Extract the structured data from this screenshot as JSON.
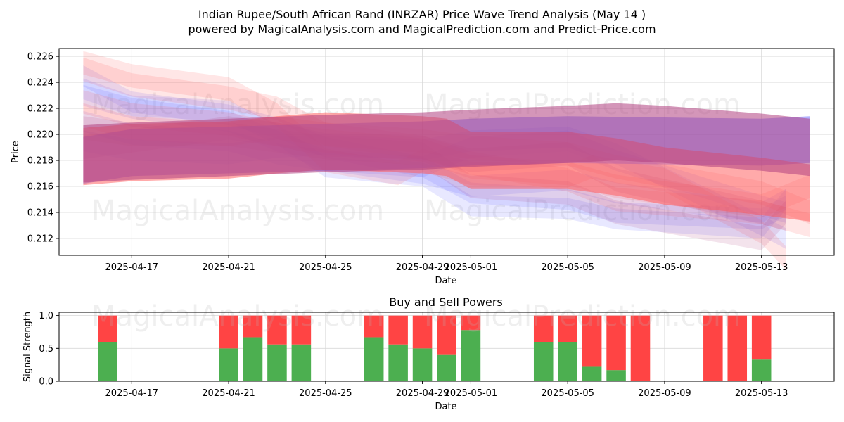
{
  "title_line1": "Indian Rupee/South African Rand (INRZAR) Price Wave Trend Analysis (May 14 )",
  "title_line2": "powered by MagicalAnalysis.com and MagicalPrediction.com and Predict-Price.com",
  "watermarks": [
    "MagicalAnalysis.com",
    "MagicalPrediction.com"
  ],
  "colors": {
    "buy": "#4caf50",
    "sell": "#ff4444",
    "blue_wave": "#6666ff",
    "red_wave": "#ff5555",
    "purple_wave": "#b04080"
  },
  "chart_data": [
    {
      "type": "area",
      "title": "",
      "xlabel": "Date",
      "ylabel": "Price",
      "x_ticks": [
        "2025-04-17",
        "2025-04-21",
        "2025-04-25",
        "2025-04-29",
        "2025-05-01",
        "2025-05-05",
        "2025-05-09",
        "2025-05-13"
      ],
      "y_ticks": [
        0.212,
        0.214,
        0.216,
        0.218,
        0.22,
        0.222,
        0.224,
        0.226
      ],
      "xlim": [
        "2025-04-14",
        "2025-05-16"
      ],
      "ylim": [
        0.2107,
        0.2266
      ],
      "grid": true,
      "series": [
        {
          "color": "blue",
          "opacity": 0.15,
          "width": 0.0008,
          "points": [
            [
              "2025-04-15",
              0.2235
            ],
            [
              "2025-04-17",
              0.2222
            ],
            [
              "2025-04-21",
              0.2218
            ],
            [
              "2025-04-23",
              0.22
            ],
            [
              "2025-04-25",
              0.2175
            ],
            [
              "2025-04-29",
              0.2168
            ],
            [
              "2025-05-01",
              0.2145
            ],
            [
              "2025-05-05",
              0.2143
            ],
            [
              "2025-05-07",
              0.2135
            ],
            [
              "2025-05-13",
              0.2128
            ],
            [
              "2025-05-14",
              0.215
            ]
          ]
        },
        {
          "color": "blue",
          "opacity": 0.15,
          "width": 0.0008,
          "points": [
            [
              "2025-04-15",
              0.2245
            ],
            [
              "2025-04-17",
              0.2225
            ],
            [
              "2025-04-21",
              0.2215
            ],
            [
              "2025-04-23",
              0.2205
            ],
            [
              "2025-04-25",
              0.219
            ],
            [
              "2025-04-29",
              0.2175
            ],
            [
              "2025-05-01",
              0.2155
            ],
            [
              "2025-05-05",
              0.215
            ],
            [
              "2025-05-07",
              0.214
            ],
            [
              "2025-05-13",
              0.2135
            ],
            [
              "2025-05-14",
              0.2145
            ]
          ]
        },
        {
          "color": "blue",
          "opacity": 0.15,
          "width": 0.0008,
          "points": [
            [
              "2025-04-15",
              0.223
            ],
            [
              "2025-04-17",
              0.222
            ],
            [
              "2025-04-21",
              0.221
            ],
            [
              "2025-04-23",
              0.2195
            ],
            [
              "2025-04-25",
              0.218
            ],
            [
              "2025-04-29",
              0.217
            ],
            [
              "2025-05-01",
              0.216
            ],
            [
              "2025-05-05",
              0.2165
            ],
            [
              "2025-05-07",
              0.2155
            ],
            [
              "2025-05-13",
              0.214
            ],
            [
              "2025-05-14",
              0.215
            ]
          ]
        },
        {
          "color": "blue",
          "opacity": 0.15,
          "width": 0.0008,
          "points": [
            [
              "2025-04-15",
              0.221
            ],
            [
              "2025-04-17",
              0.22
            ],
            [
              "2025-04-21",
              0.2195
            ],
            [
              "2025-04-23",
              0.2185
            ],
            [
              "2025-04-25",
              0.218
            ],
            [
              "2025-04-29",
              0.2175
            ],
            [
              "2025-05-01",
              0.219
            ],
            [
              "2025-05-05",
              0.2195
            ],
            [
              "2025-05-07",
              0.218
            ],
            [
              "2025-05-13",
              0.2145
            ],
            [
              "2025-05-14",
              0.214
            ]
          ]
        },
        {
          "color": "blue",
          "opacity": 0.15,
          "width": 0.0008,
          "points": [
            [
              "2025-04-15",
              0.2195
            ],
            [
              "2025-04-17",
              0.2188
            ],
            [
              "2025-04-21",
              0.2185
            ],
            [
              "2025-04-23",
              0.219
            ],
            [
              "2025-04-25",
              0.2192
            ],
            [
              "2025-04-29",
              0.2188
            ],
            [
              "2025-05-01",
              0.2195
            ],
            [
              "2025-05-05",
              0.2198
            ],
            [
              "2025-05-07",
              0.2185
            ],
            [
              "2025-05-13",
              0.213
            ],
            [
              "2025-05-14",
              0.212
            ]
          ]
        },
        {
          "color": "red",
          "opacity": 0.15,
          "width": 0.0009,
          "points": [
            [
              "2025-04-15",
              0.2255
            ],
            [
              "2025-04-17",
              0.2245
            ],
            [
              "2025-04-21",
              0.2235
            ],
            [
              "2025-04-23",
              0.2215
            ],
            [
              "2025-04-25",
              0.218
            ],
            [
              "2025-04-28",
              0.217
            ],
            [
              "2025-04-29",
              0.218
            ],
            [
              "2025-05-01",
              0.217
            ],
            [
              "2025-05-05",
              0.2168
            ],
            [
              "2025-05-06",
              0.2175
            ],
            [
              "2025-05-09",
              0.2165
            ],
            [
              "2025-05-13",
              0.2125
            ],
            [
              "2025-05-14",
              0.2105
            ]
          ]
        },
        {
          "color": "red",
          "opacity": 0.15,
          "width": 0.0009,
          "points": [
            [
              "2025-04-15",
              0.225
            ],
            [
              "2025-04-17",
              0.2238
            ],
            [
              "2025-04-21",
              0.2228
            ],
            [
              "2025-04-23",
              0.222
            ],
            [
              "2025-04-25",
              0.22
            ],
            [
              "2025-04-29",
              0.219
            ],
            [
              "2025-05-01",
              0.2178
            ],
            [
              "2025-05-05",
              0.2165
            ],
            [
              "2025-05-07",
              0.215
            ],
            [
              "2025-05-13",
              0.214
            ],
            [
              "2025-05-15",
              0.213
            ]
          ]
        },
        {
          "color": "red",
          "opacity": 0.15,
          "width": 0.0009,
          "points": [
            [
              "2025-04-15",
              0.2225
            ],
            [
              "2025-04-17",
              0.2215
            ],
            [
              "2025-04-21",
              0.2208
            ],
            [
              "2025-04-23",
              0.22
            ],
            [
              "2025-04-25",
              0.2195
            ],
            [
              "2025-04-29",
              0.2188
            ],
            [
              "2025-05-01",
              0.2175
            ],
            [
              "2025-05-05",
              0.217
            ],
            [
              "2025-05-07",
              0.216
            ],
            [
              "2025-05-13",
              0.2145
            ],
            [
              "2025-05-15",
              0.216
            ]
          ]
        },
        {
          "color": "red",
          "opacity": 0.15,
          "width": 0.0009,
          "points": [
            [
              "2025-04-15",
              0.2215
            ],
            [
              "2025-04-17",
              0.2205
            ],
            [
              "2025-04-21",
              0.22
            ],
            [
              "2025-04-23",
              0.2205
            ],
            [
              "2025-04-25",
              0.22
            ],
            [
              "2025-04-29",
              0.2195
            ],
            [
              "2025-05-01",
              0.219
            ],
            [
              "2025-05-05",
              0.2185
            ],
            [
              "2025-05-07",
              0.2175
            ],
            [
              "2025-05-13",
              0.2155
            ],
            [
              "2025-05-15",
              0.214
            ]
          ]
        },
        {
          "color": "purple",
          "opacity": 0.15,
          "width": 0.0009,
          "points": [
            [
              "2025-04-15",
              0.2205
            ],
            [
              "2025-04-17",
              0.22
            ],
            [
              "2025-04-21",
              0.22
            ],
            [
              "2025-04-23",
              0.2195
            ],
            [
              "2025-04-25",
              0.219
            ],
            [
              "2025-04-29",
              0.2185
            ],
            [
              "2025-05-01",
              0.216
            ],
            [
              "2025-05-05",
              0.2155
            ],
            [
              "2025-05-07",
              0.214
            ],
            [
              "2025-05-13",
              0.212
            ],
            [
              "2025-05-14",
              0.214
            ]
          ]
        },
        {
          "color": "purple",
          "opacity": 0.15,
          "width": 0.0009,
          "points": [
            [
              "2025-04-15",
              0.219
            ],
            [
              "2025-04-17",
              0.2195
            ],
            [
              "2025-04-21",
              0.2205
            ],
            [
              "2025-04-23",
              0.22
            ],
            [
              "2025-04-25",
              0.2192
            ],
            [
              "2025-04-29",
              0.219
            ],
            [
              "2025-05-01",
              0.218
            ],
            [
              "2025-05-05",
              0.2185
            ],
            [
              "2025-05-07",
              0.2165
            ],
            [
              "2025-05-13",
              0.214
            ],
            [
              "2025-05-14",
              0.2135
            ]
          ]
        },
        {
          "color": "blue",
          "opacity": 0.5,
          "width": 0.0018,
          "points": [
            [
              "2025-04-15",
              0.218
            ],
            [
              "2025-04-17",
              0.2186
            ],
            [
              "2025-04-21",
              0.2188
            ],
            [
              "2025-04-25",
              0.219
            ],
            [
              "2025-04-29",
              0.2192
            ],
            [
              "2025-05-01",
              0.2194
            ],
            [
              "2025-05-05",
              0.2196
            ],
            [
              "2025-05-09",
              0.2195
            ],
            [
              "2025-05-13",
              0.2194
            ],
            [
              "2025-05-15",
              0.2196
            ]
          ]
        },
        {
          "color": "red",
          "opacity": 0.5,
          "width": 0.0022,
          "points": [
            [
              "2025-04-15",
              0.2183
            ],
            [
              "2025-04-17",
              0.2186
            ],
            [
              "2025-04-21",
              0.2188
            ],
            [
              "2025-04-23",
              0.2192
            ],
            [
              "2025-04-25",
              0.2195
            ],
            [
              "2025-04-29",
              0.2192
            ],
            [
              "2025-04-30",
              0.219
            ],
            [
              "2025-05-01",
              0.218
            ],
            [
              "2025-05-05",
              0.218
            ],
            [
              "2025-05-07",
              0.2175
            ],
            [
              "2025-05-09",
              0.2168
            ],
            [
              "2025-05-13",
              0.216
            ],
            [
              "2025-05-15",
              0.2155
            ]
          ]
        },
        {
          "color": "purple",
          "opacity": 0.55,
          "width": 0.0022,
          "points": [
            [
              "2025-04-15",
              0.2185
            ],
            [
              "2025-04-17",
              0.2187
            ],
            [
              "2025-04-21",
              0.219
            ],
            [
              "2025-04-25",
              0.2193
            ],
            [
              "2025-04-29",
              0.2195
            ],
            [
              "2025-05-01",
              0.2197
            ],
            [
              "2025-05-05",
              0.22
            ],
            [
              "2025-05-07",
              0.2202
            ],
            [
              "2025-05-09",
              0.22
            ],
            [
              "2025-05-13",
              0.2194
            ],
            [
              "2025-05-15",
              0.219
            ]
          ]
        }
      ]
    },
    {
      "type": "bar",
      "title": "Buy and Sell Powers",
      "xlabel": "Date",
      "ylabel": "Signal Strength",
      "y_ticks": [
        0.0,
        0.5,
        1.0
      ],
      "ylim": [
        0,
        1.05
      ],
      "x_ticks": [
        "2025-04-17",
        "2025-04-21",
        "2025-04-25",
        "2025-04-29",
        "2025-05-01",
        "2025-05-05",
        "2025-05-09",
        "2025-05-13"
      ],
      "xlim": [
        "2025-04-14",
        "2025-05-16"
      ],
      "grid": true,
      "categories": [
        "2025-04-16",
        "2025-04-21",
        "2025-04-22",
        "2025-04-23",
        "2025-04-24",
        "2025-04-27",
        "2025-04-28",
        "2025-04-29",
        "2025-04-30",
        "2025-05-01",
        "2025-05-04",
        "2025-05-05",
        "2025-05-06",
        "2025-05-07",
        "2025-05-08",
        "2025-05-11",
        "2025-05-12",
        "2025-05-13"
      ],
      "series": [
        {
          "name": "Buy",
          "values": [
            0.6,
            0.5,
            0.67,
            0.56,
            0.56,
            0.67,
            0.56,
            0.5,
            0.4,
            0.78,
            0.6,
            0.6,
            0.22,
            0.17,
            0.0,
            0.0,
            0.0,
            0.33
          ]
        },
        {
          "name": "Sell",
          "values": [
            0.4,
            0.5,
            0.33,
            0.44,
            0.44,
            0.33,
            0.44,
            0.5,
            0.6,
            0.22,
            0.4,
            0.4,
            0.78,
            0.83,
            1.0,
            1.0,
            1.0,
            0.67
          ]
        }
      ]
    }
  ]
}
